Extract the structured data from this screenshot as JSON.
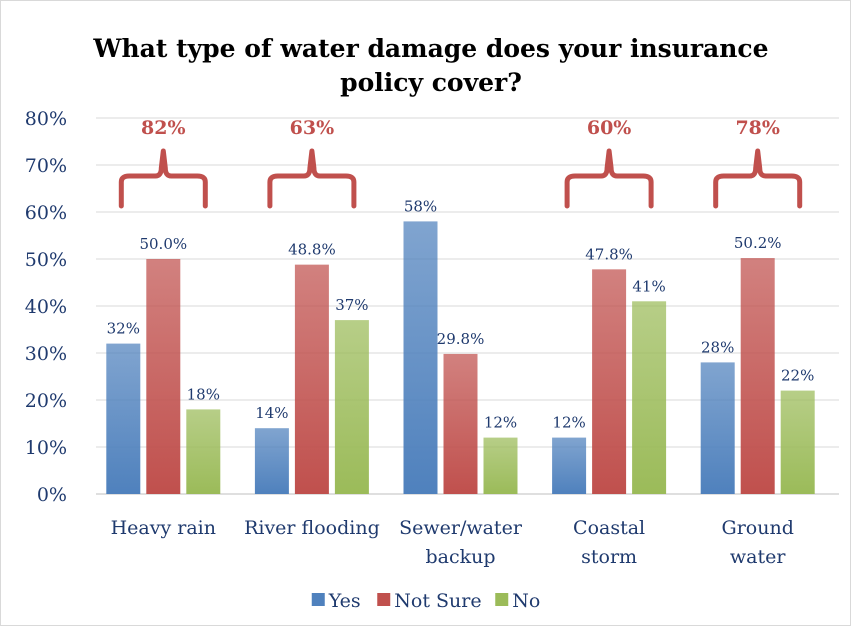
{
  "chart_data": {
    "type": "bar",
    "title": "What type of water damage does your insurance policy cover?",
    "title_lines": [
      "What type of water damage does your insurance",
      "policy cover?"
    ],
    "categories": [
      [
        "Heavy rain"
      ],
      [
        "River flooding"
      ],
      [
        "Sewer/water",
        "backup"
      ],
      [
        "Coastal",
        "storm"
      ],
      [
        "Ground",
        "water"
      ]
    ],
    "series": [
      {
        "name": "Yes",
        "color": "#4f81bd",
        "values": [
          32,
          14,
          58,
          12,
          28
        ],
        "labels": [
          "32%",
          "14%",
          "58%",
          "12%",
          "28%"
        ]
      },
      {
        "name": "Not Sure",
        "color": "#c0504d",
        "values": [
          50.0,
          48.8,
          29.8,
          47.8,
          50.2
        ],
        "labels": [
          "50.0%",
          "48.8%",
          "29.8%",
          "47.8%",
          "50.2%"
        ]
      },
      {
        "name": "No",
        "color": "#9bbb59",
        "values": [
          18,
          37,
          12,
          41,
          22
        ],
        "labels": [
          "18%",
          "37%",
          "12%",
          "41%",
          "22%"
        ]
      }
    ],
    "y_ticks": [
      "0%",
      "10%",
      "20%",
      "30%",
      "40%",
      "50%",
      "60%",
      "70%",
      "80%"
    ],
    "ylim": [
      0,
      80
    ],
    "grid": true,
    "legend_position": "bottom",
    "bracket_color": "#c0504d",
    "brackets": [
      {
        "category_index": 0,
        "label": "82%"
      },
      {
        "category_index": 1,
        "label": "63%"
      },
      {
        "category_index": 3,
        "label": "60%"
      },
      {
        "category_index": 4,
        "label": "78%"
      }
    ]
  }
}
